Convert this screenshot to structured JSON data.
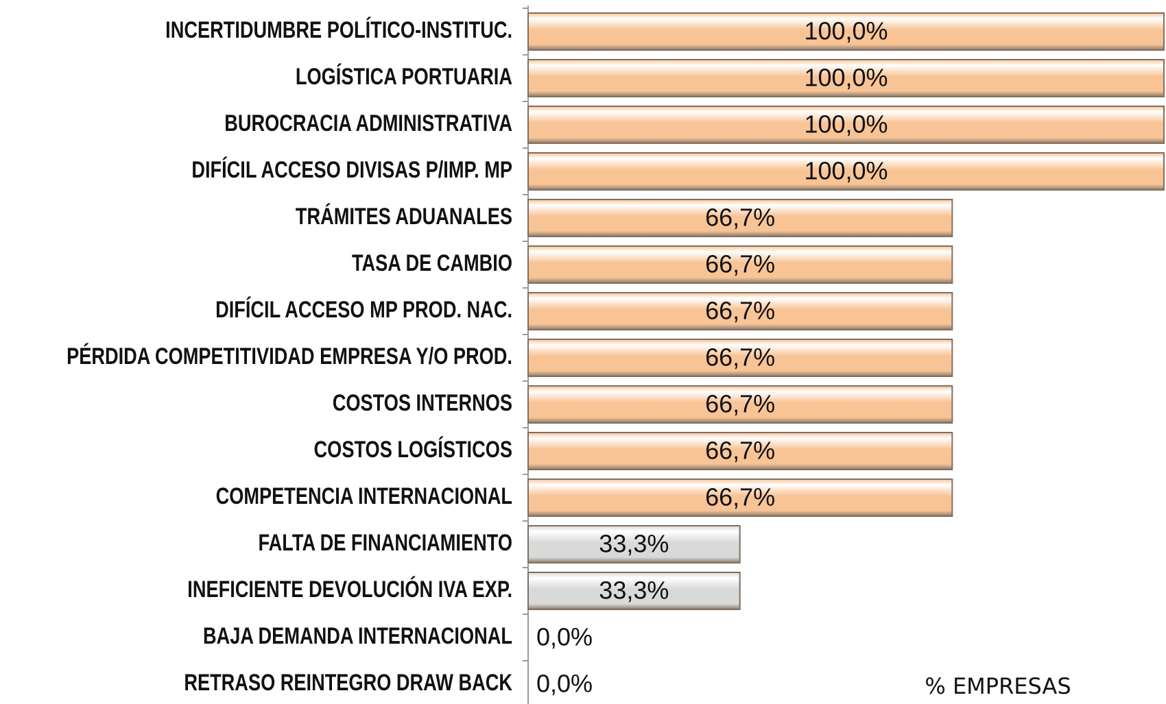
{
  "chart_data": {
    "type": "barh",
    "categories": [
      "INCERTIDUMBRE POLÍTICO-INSTITUC.",
      "LOGÍSTICA PORTUARIA",
      "BUROCRACIA ADMINISTRATIVA",
      "DIFÍCIL ACCESO DIVISAS P/IMP. MP",
      "TRÁMITES ADUANALES",
      "TASA DE CAMBIO",
      "DIFÍCIL ACCESO MP PROD. NAC.",
      "PÉRDIDA COMPETITIVIDAD EMPRESA Y/O PROD.",
      "COSTOS INTERNOS",
      "COSTOS LOGÍSTICOS",
      "COMPETENCIA INTERNACIONAL",
      "FALTA DE FINANCIAMIENTO",
      "INEFICIENTE DEVOLUCIÓN IVA EXP.",
      "BAJA DEMANDA INTERNACIONAL",
      "RETRASO REINTEGRO DRAW BACK"
    ],
    "values": [
      100,
      100,
      100,
      100,
      66.7,
      66.7,
      66.7,
      66.7,
      66.7,
      66.7,
      66.7,
      33.3,
      33.3,
      0,
      0
    ],
    "value_labels": [
      "100,0%",
      "100,0%",
      "100,0%",
      "100,0%",
      "66,7%",
      "66,7%",
      "66,7%",
      "66,7%",
      "66,7%",
      "66,7%",
      "66,7%",
      "33,3%",
      "33,3%",
      "0,0%",
      "0,0%"
    ],
    "colors": [
      "#f8c496",
      "#f8c496",
      "#f8c496",
      "#f8c496",
      "#f8c496",
      "#f8c496",
      "#f8c496",
      "#f8c496",
      "#f8c496",
      "#f8c496",
      "#f8c496",
      "#d9d9d9",
      "#d9d9d9",
      "#d9d9d9",
      "#d9d9d9"
    ],
    "xlabel": "% EMPRESAS",
    "xlim": [
      0,
      100
    ]
  }
}
